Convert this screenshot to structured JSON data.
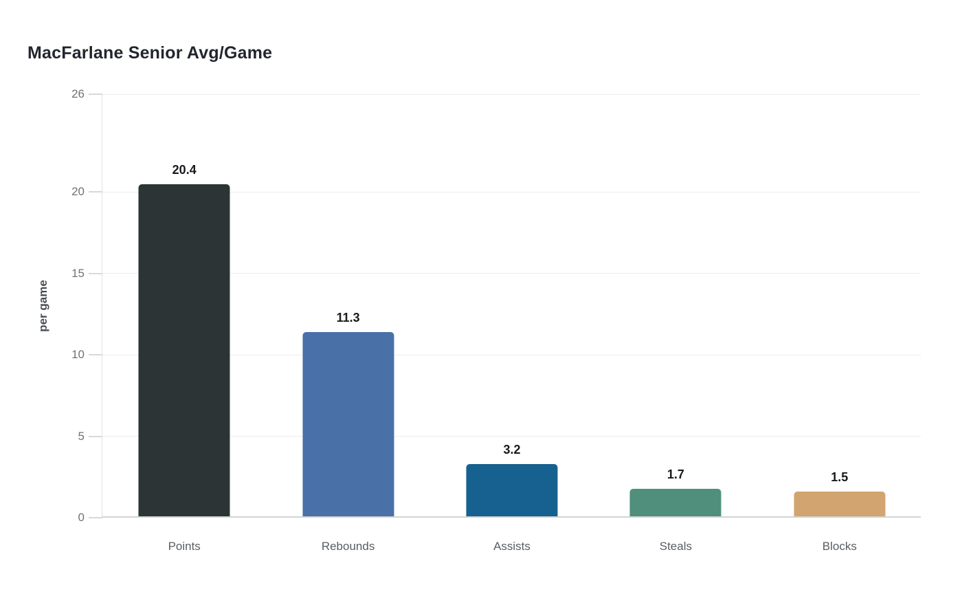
{
  "chart_data": {
    "type": "bar",
    "title": "MacFarlane Senior Avg/Game",
    "xlabel": "",
    "ylabel": "per game",
    "categories": [
      "Points",
      "Rebounds",
      "Assists",
      "Steals",
      "Blocks"
    ],
    "values": [
      20.4,
      11.3,
      3.2,
      1.7,
      1.5
    ],
    "value_labels": [
      "20.4",
      "11.3",
      "3.2",
      "1.7",
      "1.5"
    ],
    "bar_colors": [
      "#2c3436",
      "#4a70a8",
      "#16618f",
      "#4f8f7b",
      "#d1a470"
    ],
    "ylim": [
      0,
      26
    ],
    "yticks": [
      0,
      5,
      10,
      15,
      20,
      26
    ],
    "grid": true,
    "legend_position": "none",
    "background_color": "#ffffff",
    "gridline_color": "#ececec",
    "axis_line_color": "#d2d4d5",
    "tick_label_color": "#6e7276",
    "category_label_color": "#585d63",
    "value_label_color": "#17191c",
    "title_color": "#21262d"
  }
}
